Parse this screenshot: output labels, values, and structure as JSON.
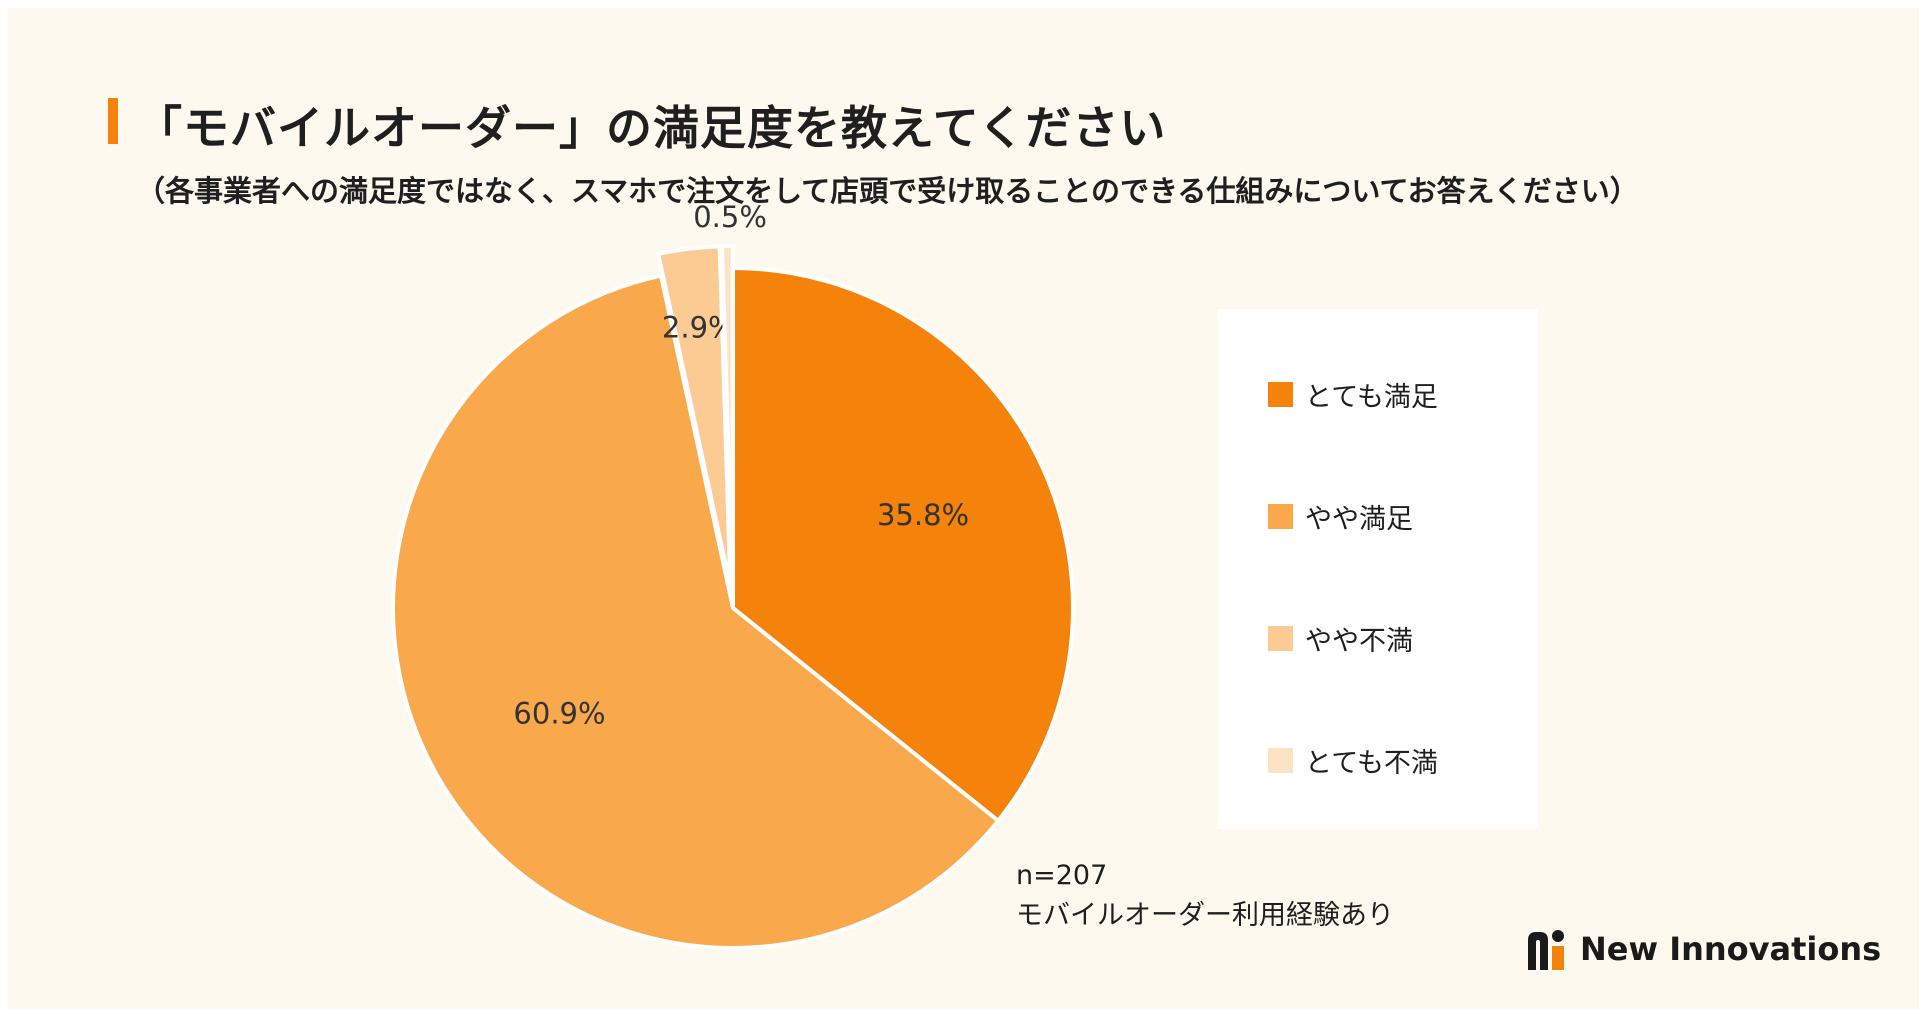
{
  "header": {
    "title": "「モバイルオーダー」の満足度を教えてください",
    "subtitle": "（各事業者への満足度ではなく、スマホで注文をして店頭で受け取ることのできる仕組みについてお答えください）"
  },
  "chart_data": {
    "type": "pie",
    "categories": [
      "とても満足",
      "やや満足",
      "やや不満",
      "とても不満"
    ],
    "values": [
      35.8,
      60.9,
      2.9,
      0.5
    ],
    "labels": [
      "35.8%",
      "60.9%",
      "2.9%",
      "0.5%"
    ],
    "colors": [
      "#f5820b",
      "#f9a84b",
      "#fbcb93",
      "#fde2c4"
    ],
    "exploded": [
      false,
      false,
      true,
      true
    ],
    "legend_position": "right"
  },
  "note": {
    "sample": "n=207",
    "population": "モバイルオーダー利用経験あり"
  },
  "brand": {
    "name": "New Innovations"
  }
}
